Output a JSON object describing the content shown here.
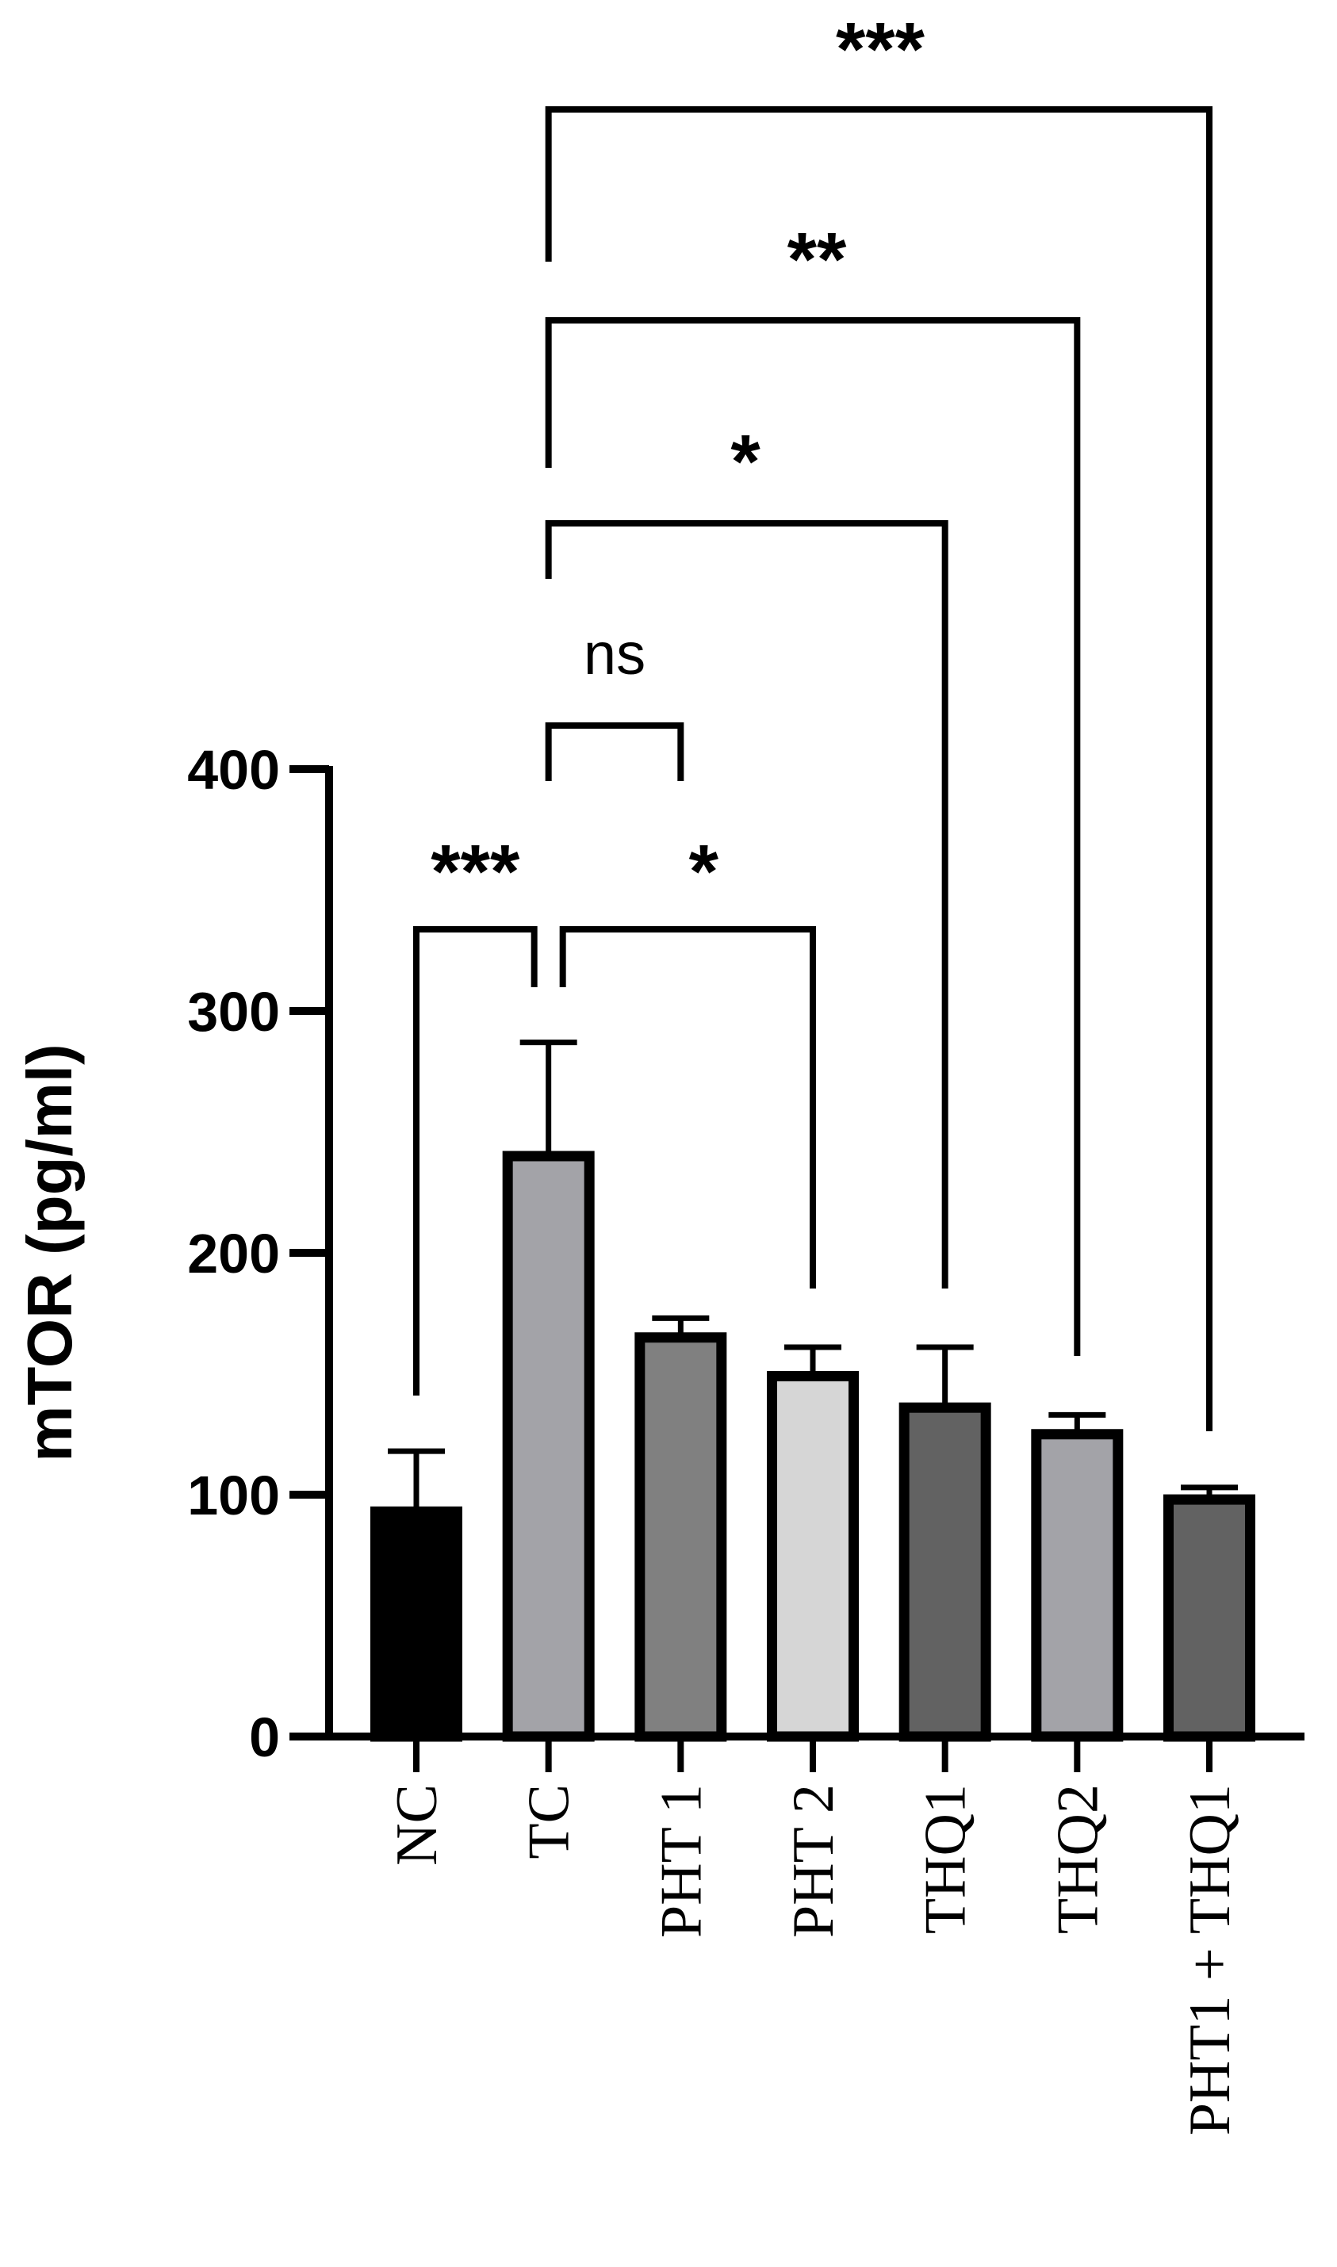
{
  "chart_data": {
    "type": "bar",
    "ylabel": "mTOR (pg/ml)",
    "ylim": [
      0,
      400
    ],
    "yticks": [
      0,
      100,
      200,
      300,
      400
    ],
    "categories": [
      "NC",
      "TC",
      "PHT 1",
      "PHT 2",
      "THQ1",
      "THQ2",
      "PHT1 + THQ1"
    ],
    "values": [
      93,
      240,
      165,
      149,
      136,
      125,
      98
    ],
    "errors": [
      25,
      47,
      8,
      12,
      25,
      8,
      5
    ],
    "bar_colors": [
      "#000000",
      "#a3a3a8",
      "#808080",
      "#d6d6d6",
      "#626262",
      "#a3a3a8",
      "#626262"
    ],
    "comparisons": [
      {
        "from": "NC",
        "to": "TC",
        "label": "***"
      },
      {
        "from": "TC",
        "to": "PHT 2",
        "label": "*"
      },
      {
        "from": "TC",
        "to": "PHT 1",
        "label": "ns"
      },
      {
        "from": "TC",
        "to": "THQ1",
        "label": "*"
      },
      {
        "from": "TC",
        "to": "THQ2",
        "label": "**"
      },
      {
        "from": "TC",
        "to": "PHT1 + THQ1",
        "label": "***"
      }
    ]
  }
}
